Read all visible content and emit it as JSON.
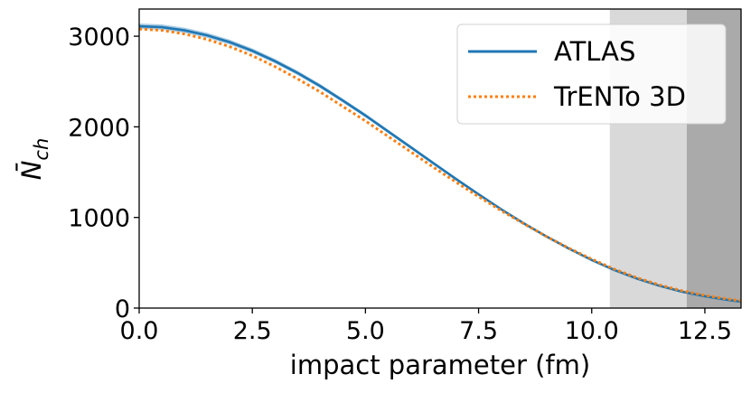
{
  "chart_data": {
    "type": "line",
    "title": "",
    "xlabel": "impact parameter (fm)",
    "ylabel": "N̄",
    "ylabel_subscript": "ch",
    "xlim": [
      0.0,
      13.3
    ],
    "ylim": [
      0,
      3300
    ],
    "x_ticks": [
      0.0,
      2.5,
      5.0,
      7.5,
      10.0,
      12.5
    ],
    "x_tick_labels": [
      "0.0",
      "2.5",
      "5.0",
      "7.5",
      "10.0",
      "12.5"
    ],
    "y_ticks": [
      0,
      1000,
      2000,
      3000
    ],
    "y_tick_labels": [
      "0",
      "1000",
      "2000",
      "3000"
    ],
    "grid": false,
    "legend_position": "top-right",
    "shaded_regions": [
      {
        "x_start": 10.4,
        "x_end": 12.1,
        "color": "#d9d9d9"
      },
      {
        "x_start": 12.1,
        "x_end": 13.3,
        "color": "#aaaaaa"
      }
    ],
    "series": [
      {
        "name": "ATLAS",
        "style": "solid",
        "color": "#1f77b4",
        "band_color": "#8fbbda",
        "x": [
          0.0,
          0.5,
          1.0,
          1.5,
          2.0,
          2.5,
          3.0,
          3.5,
          4.0,
          4.5,
          5.0,
          5.5,
          6.0,
          6.5,
          7.0,
          7.5,
          8.0,
          8.5,
          9.0,
          9.5,
          10.0,
          10.5,
          11.0,
          11.5,
          12.0,
          12.5,
          13.0,
          13.3
        ],
        "y": [
          3110,
          3100,
          3065,
          3010,
          2935,
          2840,
          2725,
          2595,
          2450,
          2290,
          2125,
          1950,
          1775,
          1600,
          1425,
          1255,
          1090,
          935,
          790,
          655,
          530,
          420,
          325,
          245,
          180,
          130,
          90,
          70
        ],
        "band": [
          30,
          30,
          29,
          28,
          27,
          26,
          25,
          24,
          23,
          22,
          21,
          20,
          19,
          18,
          17,
          16,
          15,
          14,
          13,
          12,
          11,
          10,
          9,
          8,
          7,
          6,
          5,
          5
        ]
      },
      {
        "name": "TrENTo 3D",
        "style": "dotted",
        "color": "#ff7f0e",
        "x": [
          0.0,
          0.5,
          1.0,
          1.5,
          2.0,
          2.5,
          3.0,
          3.5,
          4.0,
          4.5,
          5.0,
          5.5,
          6.0,
          6.5,
          7.0,
          7.5,
          8.0,
          8.5,
          9.0,
          9.5,
          10.0,
          10.5,
          11.0,
          11.5,
          12.0,
          12.5,
          13.0,
          13.3
        ],
        "y": [
          3080,
          3065,
          3025,
          2965,
          2885,
          2785,
          2665,
          2530,
          2385,
          2225,
          2065,
          1895,
          1725,
          1555,
          1390,
          1230,
          1075,
          930,
          790,
          660,
          540,
          430,
          335,
          255,
          190,
          140,
          100,
          80
        ]
      }
    ]
  }
}
